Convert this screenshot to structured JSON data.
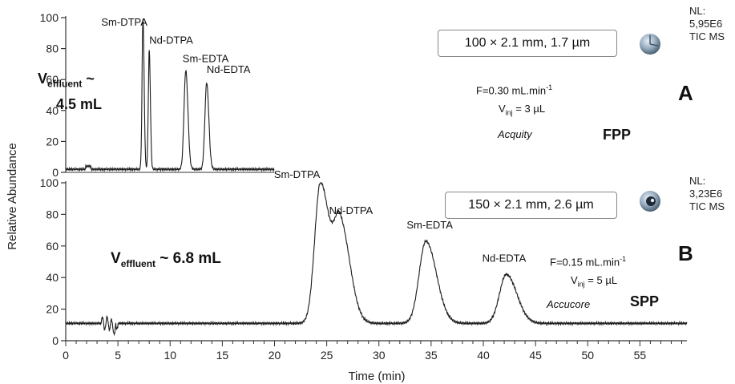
{
  "chart_data": {
    "type": "line",
    "xlabel": "Time (min)",
    "ylabel": "Relative Abundance",
    "x_ticks": [
      0,
      5,
      10,
      15,
      20,
      25,
      30,
      35,
      40,
      45,
      50,
      55
    ],
    "xlim": [
      0,
      59.5
    ],
    "panels": [
      {
        "id": "A",
        "letter": "A",
        "y_ticks": [
          0,
          20,
          40,
          60,
          80,
          100
        ],
        "ylim": [
          0,
          100
        ],
        "column": "100 × 2.1 mm, 1.7 µm",
        "nl_label": "NL:",
        "nl_value": "5,95E6",
        "nl_mode": "TIC MS",
        "flow_prefix": "F=0.30 mL.min",
        "flow_sup": "-1",
        "vinj_prefix": "V",
        "vinj_sub": "inj",
        "vinj_suffix": " = 3 µL",
        "instrument": "Acquity",
        "particle": "FPP",
        "veff_V": "V",
        "veff_sub": "effluent",
        "veff_tail": " ~",
        "veff_value": "4.5 mL",
        "baseline": 2,
        "trace_end": 20,
        "peaks": [
          {
            "label": "Sm-DTPA",
            "x": 7.4,
            "y": 100,
            "width": 0.09
          },
          {
            "label": "Nd-DTPA",
            "x": 8.0,
            "y": 79,
            "width": 0.09
          },
          {
            "label": "Sm-EDTA",
            "x": 11.5,
            "y": 66,
            "width": 0.17
          },
          {
            "label": "Nd-EDTA",
            "x": 13.5,
            "y": 58,
            "width": 0.17
          }
        ]
      },
      {
        "id": "B",
        "letter": "B",
        "y_ticks": [
          0,
          20,
          40,
          60,
          80,
          100
        ],
        "ylim": [
          0,
          100
        ],
        "column": "150 × 2.1 mm, 2.6 µm",
        "nl_label": "NL:",
        "nl_value": "3,23E6",
        "nl_mode": "TIC MS",
        "flow_prefix": "F=0.15 mL.min",
        "flow_sup": "-1",
        "vinj_prefix": "V",
        "vinj_sub": "inj",
        "vinj_suffix": " = 5 µL",
        "instrument": "Accucore",
        "particle": "SPP",
        "veff_V": "V",
        "veff_sub": "effluent",
        "veff_tail": " ~ 6.8 mL",
        "veff_value": "",
        "baseline": 11,
        "trace_end": 59.5,
        "peaks": [
          {
            "label": "Sm-DTPA",
            "x": 24.4,
            "y": 100,
            "width": 0.55
          },
          {
            "label": "Nd-DTPA",
            "x": 26.3,
            "y": 73,
            "width": 0.6
          },
          {
            "label": "Sm-EDTA",
            "x": 34.5,
            "y": 63,
            "width": 0.65
          },
          {
            "label": "Nd-EDTA",
            "x": 42.2,
            "y": 42,
            "width": 0.65
          }
        ]
      }
    ]
  }
}
